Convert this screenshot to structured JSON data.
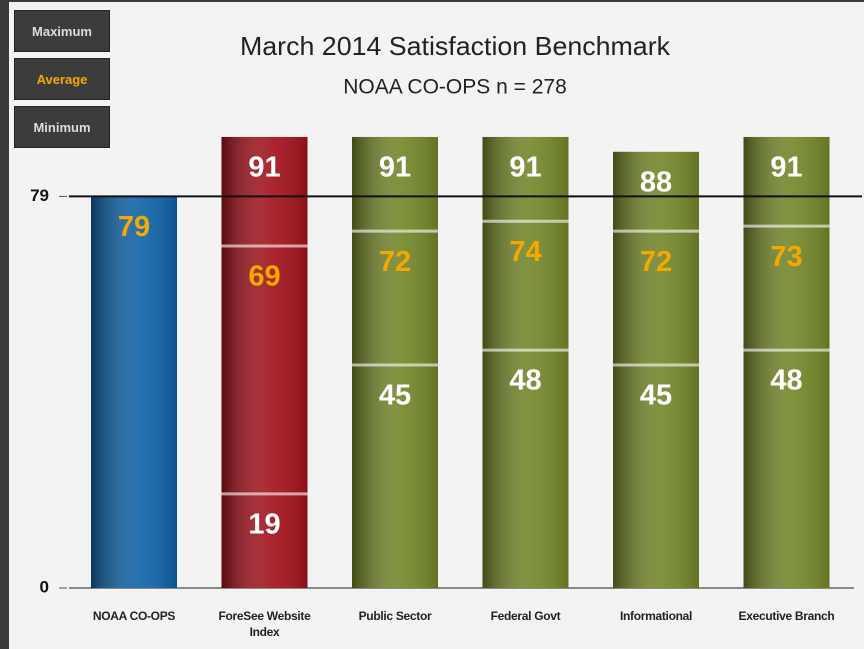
{
  "chart_data": {
    "type": "range_bar",
    "title": "March 2014 Satisfaction Benchmark",
    "subtitle": "NOAA CO-OPS n = 278",
    "categories": [
      "NOAA CO-OPS",
      "ForeSee Website Index",
      "Public Sector",
      "Federal Govt",
      "Informational",
      "Executive Branch"
    ],
    "bar_colors": [
      "#0f63a8",
      "#a3121c",
      "#74872a",
      "#74872a",
      "#74872a",
      "#74872a"
    ],
    "series": [
      {
        "name": "Maximum",
        "color": "#ffffff",
        "values": [
          null,
          91,
          91,
          91,
          88,
          91
        ]
      },
      {
        "name": "Average",
        "color": "#f5a800",
        "values": [
          79,
          69,
          72,
          74,
          72,
          73
        ]
      },
      {
        "name": "Minimum",
        "color": "#ffffff",
        "values": [
          null,
          19,
          45,
          48,
          45,
          48
        ]
      }
    ],
    "ylim": [
      0,
      92
    ],
    "yticks": [
      0,
      79
    ],
    "reference_line": 79
  }
}
